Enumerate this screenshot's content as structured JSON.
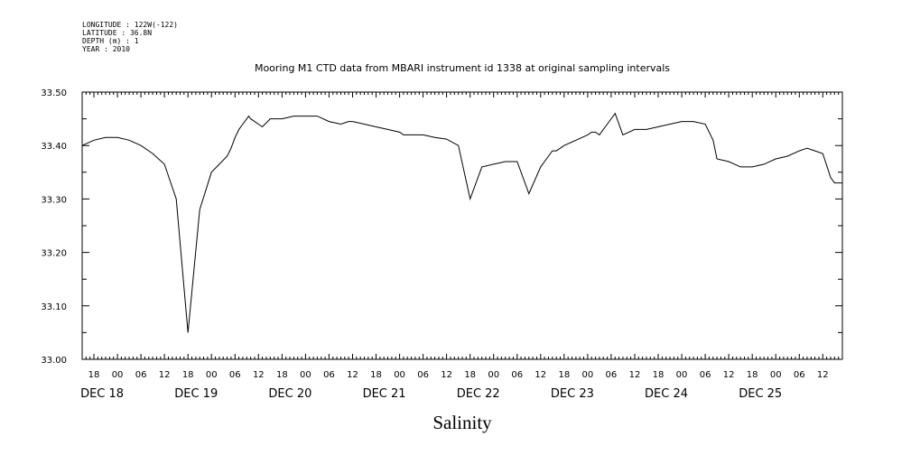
{
  "header": {
    "meta_lines": [
      "LONGITUDE : 122W(-122)",
      "LATITUDE : 36.8N",
      "DEPTH (m) : 1",
      "YEAR : 2010"
    ]
  },
  "chart_data": {
    "type": "line",
    "title": "Mooring M1 CTD data from MBARI instrument id 1338 at original sampling intervals",
    "xlabel": "Salinity",
    "ylabel": "",
    "ylim": [
      33.0,
      33.5
    ],
    "y_ticks": [
      "33.00",
      "33.10",
      "33.20",
      "33.30",
      "33.40",
      "33.50"
    ],
    "x_range_hours": [
      "2010-12-17T15:00",
      "2010-12-25T17:00"
    ],
    "x_hour_ticks": [
      "18",
      "00",
      "06",
      "12",
      "18",
      "00",
      "06",
      "12",
      "18",
      "00",
      "06",
      "12",
      "18",
      "00",
      "06",
      "12",
      "18",
      "00",
      "06",
      "12",
      "18",
      "00",
      "06",
      "12",
      "18",
      "00",
      "06",
      "12",
      "18",
      "00",
      "06",
      "12"
    ],
    "x_day_labels": [
      "DEC 18",
      "DEC 19",
      "DEC 20",
      "DEC 21",
      "DEC 22",
      "DEC 23",
      "DEC 24",
      "DEC 25"
    ],
    "grid": false,
    "legend": "none",
    "line_color": "#000000",
    "series": [
      {
        "x": [
          "2010-12-17T15:00",
          "2010-12-17T18:00",
          "2010-12-17T21:00",
          "2010-12-18T00:00",
          "2010-12-18T03:00",
          "2010-12-18T06:00",
          "2010-12-18T09:00",
          "2010-12-18T12:00",
          "2010-12-18T15:00",
          "2010-12-18T18:00",
          "2010-12-18T21:00",
          "2010-12-19T00:00",
          "2010-12-19T02:00",
          "2010-12-19T04:00",
          "2010-12-19T05:00",
          "2010-12-19T06:00",
          "2010-12-19T07:00",
          "2010-12-19T08:00",
          "2010-12-19T09:00",
          "2010-12-19T09:30",
          "2010-12-19T10:00",
          "2010-12-19T11:00",
          "2010-12-19T12:00",
          "2010-12-19T13:00",
          "2010-12-19T15:00",
          "2010-12-19T18:00",
          "2010-12-19T21:00",
          "2010-12-20T00:00",
          "2010-12-20T03:00",
          "2010-12-20T06:00",
          "2010-12-20T09:00",
          "2010-12-20T11:00",
          "2010-12-20T12:00",
          "2010-12-20T15:00",
          "2010-12-20T18:00",
          "2010-12-20T21:00",
          "2010-12-21T00:00",
          "2010-12-21T01:00",
          "2010-12-21T03:00",
          "2010-12-21T06:00",
          "2010-12-21T09:00",
          "2010-12-21T12:00",
          "2010-12-21T15:00",
          "2010-12-21T18:00",
          "2010-12-21T21:00",
          "2010-12-22T00:00",
          "2010-12-22T03:00",
          "2010-12-22T06:00",
          "2010-12-22T09:00",
          "2010-12-22T12:00",
          "2010-12-22T13:30",
          "2010-12-22T15:00",
          "2010-12-22T16:00",
          "2010-12-22T17:00",
          "2010-12-22T18:00",
          "2010-12-22T21:00",
          "2010-12-23T00:00",
          "2010-12-23T01:00",
          "2010-12-23T02:00",
          "2010-12-23T03:00",
          "2010-12-23T04:00",
          "2010-12-23T05:00",
          "2010-12-23T07:00",
          "2010-12-23T09:00",
          "2010-12-23T12:00",
          "2010-12-23T15:00",
          "2010-12-23T18:00",
          "2010-12-23T21:00",
          "2010-12-24T00:00",
          "2010-12-24T03:00",
          "2010-12-24T06:00",
          "2010-12-24T08:00",
          "2010-12-24T09:00",
          "2010-12-24T12:00",
          "2010-12-24T15:00",
          "2010-12-24T18:00",
          "2010-12-24T21:00",
          "2010-12-25T00:00",
          "2010-12-25T03:00",
          "2010-12-25T06:00",
          "2010-12-25T08:00",
          "2010-12-25T10:00",
          "2010-12-25T12:00",
          "2010-12-25T14:00",
          "2010-12-25T15:00",
          "2010-12-25T17:00"
        ],
        "y": [
          33.4,
          33.41,
          33.415,
          33.415,
          33.41,
          33.4,
          33.385,
          33.365,
          33.3,
          33.05,
          33.28,
          33.35,
          33.365,
          33.38,
          33.395,
          33.415,
          33.43,
          33.44,
          33.45,
          33.455,
          33.45,
          33.445,
          33.44,
          33.435,
          33.45,
          33.45,
          33.455,
          33.455,
          33.455,
          33.445,
          33.44,
          33.445,
          33.445,
          33.44,
          33.435,
          33.43,
          33.425,
          33.42,
          33.42,
          33.42,
          33.415,
          33.412,
          33.4,
          33.3,
          33.36,
          33.365,
          33.37,
          33.37,
          33.31,
          33.36,
          33.375,
          33.39,
          33.39,
          33.395,
          33.4,
          33.41,
          33.42,
          33.425,
          33.425,
          33.42,
          33.43,
          33.44,
          33.46,
          33.42,
          33.43,
          33.43,
          33.435,
          33.44,
          33.445,
          33.445,
          33.44,
          33.41,
          33.375,
          33.37,
          33.36,
          33.36,
          33.365,
          33.375,
          33.38,
          33.39,
          33.395,
          33.39,
          33.385,
          33.34,
          33.33,
          33.33
        ]
      }
    ]
  }
}
